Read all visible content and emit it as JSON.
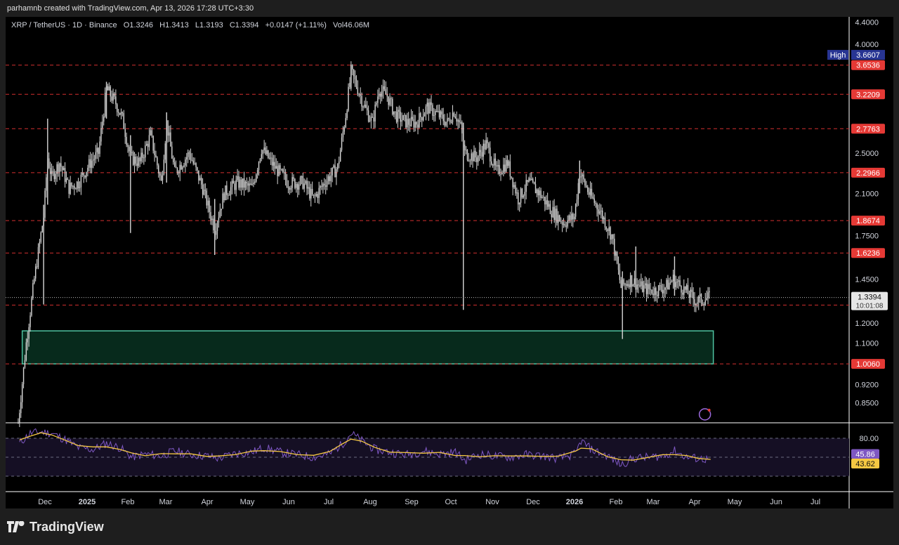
{
  "header": {
    "created_by": "parhamnb created with TradingView.com, Apr 13, 2026 17:28 UTC+3:30"
  },
  "symbol_line": {
    "symbol": "XRP / TetherUS · 1D · Binance",
    "open": "O1.3246",
    "high": "H1.3413",
    "low": "L1.3193",
    "close": "C1.3394",
    "change": "+0.0147 (+1.11%)",
    "volume": "Vol46.06M"
  },
  "footer": {
    "brand": "TradingView"
  },
  "colors": {
    "background": "#000000",
    "candle": "#d8d8d8",
    "level_line": "#d32f2f",
    "level_label_bg": "#e53935",
    "zone_border": "#4fc3a1",
    "zone_fill": "#072a1c",
    "rsi_line": "#7e57c2",
    "rsi_ma": "#f5c842",
    "high_label_bg": "#283593"
  },
  "chart_data": {
    "type": "candlestick",
    "title": "XRP / TetherUS · 1D · Binance",
    "y_scale": "log",
    "ylim": [
      0.78,
      4.5
    ],
    "y_ticks": [
      "4.4000",
      "4.0000",
      "2.5000",
      "2.1000",
      "1.7500",
      "1.4500",
      "1.2000",
      "1.1000",
      "0.9200",
      "0.8500"
    ],
    "x_tick_labels": [
      "Dec",
      "2025",
      "Feb",
      "Mar",
      "Apr",
      "May",
      "Jun",
      "Jul",
      "Aug",
      "Sep",
      "Oct",
      "Nov",
      "Dec",
      "2026",
      "Feb",
      "Mar",
      "Apr",
      "May",
      "Jun",
      "Jul"
    ],
    "x_tick_bold": [
      false,
      true,
      false,
      false,
      false,
      false,
      false,
      false,
      false,
      false,
      false,
      false,
      false,
      true,
      false,
      false,
      false,
      false,
      false,
      false
    ],
    "high_marker": {
      "label": "High",
      "value": "3.6607"
    },
    "horizontal_levels": [
      "3.6536",
      "3.2209",
      "2.7763",
      "2.2966",
      "1.8674",
      "1.6236",
      "1.2966",
      "1.0060"
    ],
    "current_price": {
      "value": "1.3394",
      "countdown": "10:01:08"
    },
    "zone": {
      "price_low": 1.006,
      "price_high": 1.16,
      "start": "2024-11-14",
      "end": "2026-04-15"
    },
    "price_path": [
      [
        "2024-11-11",
        0.78
      ],
      [
        "2024-11-17",
        1.1
      ],
      [
        "2024-11-23",
        1.45
      ],
      [
        "2024-11-30",
        1.9
      ],
      [
        "2024-12-03",
        2.45
      ],
      [
        "2024-12-06",
        2.25
      ],
      [
        "2024-12-12",
        2.4
      ],
      [
        "2024-12-19",
        2.15
      ],
      [
        "2024-12-26",
        2.2
      ],
      [
        "2025-01-04",
        2.4
      ],
      [
        "2025-01-10",
        2.5
      ],
      [
        "2025-01-16",
        3.3
      ],
      [
        "2025-01-23",
        3.1
      ],
      [
        "2025-01-28",
        2.9
      ],
      [
        "2025-02-03",
        2.45
      ],
      [
        "2025-02-10",
        2.4
      ],
      [
        "2025-02-18",
        2.7
      ],
      [
        "2025-02-26",
        2.2
      ],
      [
        "2025-03-02",
        2.85
      ],
      [
        "2025-03-08",
        2.3
      ],
      [
        "2025-03-19",
        2.5
      ],
      [
        "2025-03-29",
        2.15
      ],
      [
        "2025-04-07",
        1.8
      ],
      [
        "2025-04-14",
        2.1
      ],
      [
        "2025-04-24",
        2.2
      ],
      [
        "2025-05-05",
        2.15
      ],
      [
        "2025-05-12",
        2.55
      ],
      [
        "2025-05-22",
        2.35
      ],
      [
        "2025-06-01",
        2.2
      ],
      [
        "2025-06-12",
        2.2
      ],
      [
        "2025-06-20",
        2.05
      ],
      [
        "2025-06-28",
        2.2
      ],
      [
        "2025-07-08",
        2.35
      ],
      [
        "2025-07-14",
        2.95
      ],
      [
        "2025-07-18",
        3.55
      ],
      [
        "2025-07-22",
        3.35
      ],
      [
        "2025-07-28",
        3.05
      ],
      [
        "2025-08-03",
        2.85
      ],
      [
        "2025-08-08",
        3.3
      ],
      [
        "2025-08-14",
        3.2
      ],
      [
        "2025-08-20",
        2.95
      ],
      [
        "2025-08-29",
        2.85
      ],
      [
        "2025-09-05",
        2.85
      ],
      [
        "2025-09-13",
        3.05
      ],
      [
        "2025-09-21",
        2.95
      ],
      [
        "2025-09-28",
        2.85
      ],
      [
        "2025-10-03",
        3.0
      ],
      [
        "2025-10-08",
        2.8
      ],
      [
        "2025-10-11",
        2.5
      ],
      [
        "2025-10-20",
        2.45
      ],
      [
        "2025-10-27",
        2.6
      ],
      [
        "2025-11-04",
        2.3
      ],
      [
        "2025-11-12",
        2.4
      ],
      [
        "2025-11-20",
        2.05
      ],
      [
        "2025-11-28",
        2.2
      ],
      [
        "2025-12-06",
        2.1
      ],
      [
        "2025-12-15",
        1.95
      ],
      [
        "2025-12-24",
        1.85
      ],
      [
        "2026-01-01",
        1.9
      ],
      [
        "2026-01-05",
        2.3
      ],
      [
        "2026-01-12",
        2.1
      ],
      [
        "2026-01-20",
        1.95
      ],
      [
        "2026-01-29",
        1.75
      ],
      [
        "2026-02-05",
        1.4
      ],
      [
        "2026-02-12",
        1.45
      ],
      [
        "2026-02-20",
        1.4
      ],
      [
        "2026-03-01",
        1.38
      ],
      [
        "2026-03-10",
        1.4
      ],
      [
        "2026-03-16",
        1.45
      ],
      [
        "2026-03-25",
        1.38
      ],
      [
        "2026-04-02",
        1.32
      ],
      [
        "2026-04-13",
        1.3394
      ]
    ],
    "wicks": [
      {
        "date": "2024-11-30",
        "high": 2.0,
        "low": 1.3
      },
      {
        "date": "2024-12-03",
        "high": 2.9,
        "low": 2.0
      },
      {
        "date": "2025-01-16",
        "high": 3.4,
        "low": 2.9
      },
      {
        "date": "2025-02-03",
        "high": 2.7,
        "low": 1.77
      },
      {
        "date": "2025-03-02",
        "high": 2.98,
        "low": 2.2
      },
      {
        "date": "2025-04-07",
        "high": 2.05,
        "low": 1.61
      },
      {
        "date": "2025-07-18",
        "high": 3.6607,
        "low": 3.3
      },
      {
        "date": "2025-10-10",
        "high": 2.85,
        "low": 1.27
      },
      {
        "date": "2026-01-05",
        "high": 2.42,
        "low": 2.1
      },
      {
        "date": "2026-02-06",
        "high": 1.5,
        "low": 1.12
      },
      {
        "date": "2026-02-16",
        "high": 1.67,
        "low": 1.4
      },
      {
        "date": "2026-03-17",
        "high": 1.6,
        "low": 1.35
      }
    ],
    "rsi": {
      "upper": "80.00",
      "values": {
        "rsi": "45.86",
        "ma": "43.62"
      },
      "path": [
        [
          "2024-11-12",
          72
        ],
        [
          "2024-11-20",
          88
        ],
        [
          "2024-11-28",
          90
        ],
        [
          "2024-12-06",
          88
        ],
        [
          "2024-12-16",
          78
        ],
        [
          "2024-12-26",
          65
        ],
        [
          "2025-01-06",
          62
        ],
        [
          "2025-01-16",
          72
        ],
        [
          "2025-01-26",
          65
        ],
        [
          "2025-02-04",
          50
        ],
        [
          "2025-02-14",
          55
        ],
        [
          "2025-02-26",
          52
        ],
        [
          "2025-03-08",
          60
        ],
        [
          "2025-03-20",
          54
        ],
        [
          "2025-04-01",
          52
        ],
        [
          "2025-04-10",
          48
        ],
        [
          "2025-04-22",
          56
        ],
        [
          "2025-05-05",
          58
        ],
        [
          "2025-05-14",
          65
        ],
        [
          "2025-05-26",
          58
        ],
        [
          "2025-06-08",
          54
        ],
        [
          "2025-06-20",
          50
        ],
        [
          "2025-07-02",
          55
        ],
        [
          "2025-07-12",
          72
        ],
        [
          "2025-07-18",
          88
        ],
        [
          "2025-07-26",
          76
        ],
        [
          "2025-08-05",
          62
        ],
        [
          "2025-08-16",
          58
        ],
        [
          "2025-08-28",
          54
        ],
        [
          "2025-09-10",
          60
        ],
        [
          "2025-09-22",
          55
        ],
        [
          "2025-10-04",
          58
        ],
        [
          "2025-10-11",
          45
        ],
        [
          "2025-10-22",
          55
        ],
        [
          "2025-11-02",
          52
        ],
        [
          "2025-11-14",
          50
        ],
        [
          "2025-11-26",
          54
        ],
        [
          "2025-12-08",
          52
        ],
        [
          "2025-12-20",
          48
        ],
        [
          "2026-01-02",
          55
        ],
        [
          "2026-01-06",
          76
        ],
        [
          "2026-01-14",
          62
        ],
        [
          "2026-01-26",
          52
        ],
        [
          "2026-02-05",
          38
        ],
        [
          "2026-02-14",
          48
        ],
        [
          "2026-02-26",
          50
        ],
        [
          "2026-03-08",
          52
        ],
        [
          "2026-03-17",
          60
        ],
        [
          "2026-03-26",
          50
        ],
        [
          "2026-04-04",
          48
        ],
        [
          "2026-04-13",
          45.86
        ]
      ]
    }
  }
}
